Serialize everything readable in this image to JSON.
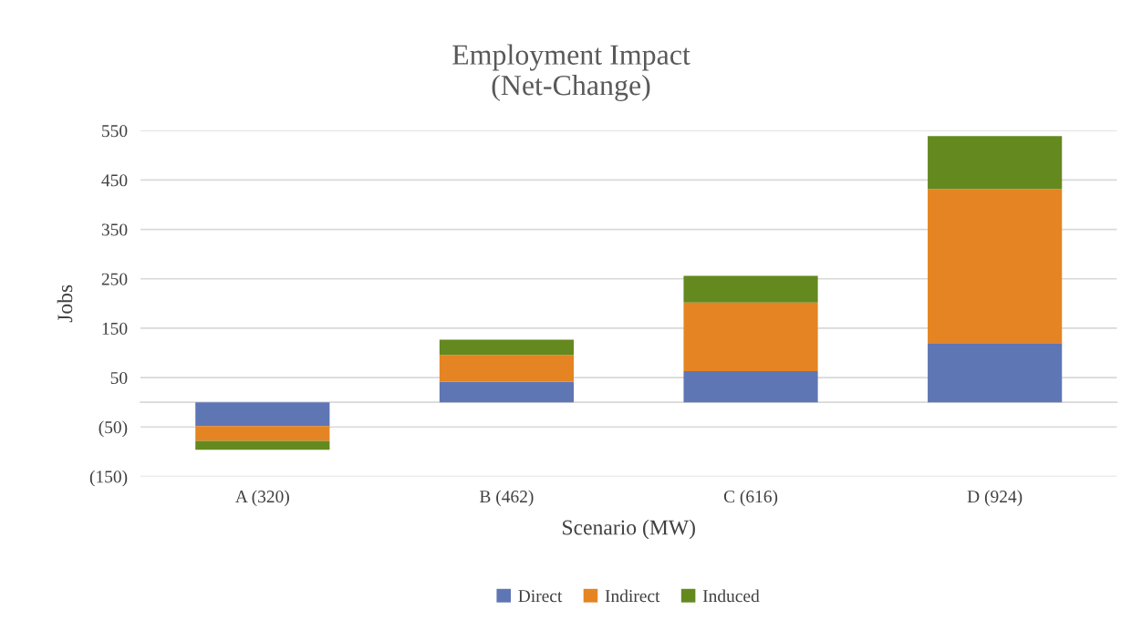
{
  "chart_data": {
    "type": "bar",
    "title": "Employment Impact\n(Net-Change)",
    "xlabel": "Scenario (MW)",
    "ylabel": "Jobs",
    "categories": [
      "A (320)",
      "B (462)",
      "C (616)",
      "D (924)"
    ],
    "stacked": true,
    "series": [
      {
        "name": "Direct",
        "color": "#5f76b4",
        "values": [
          -48,
          42,
          63,
          120
        ]
      },
      {
        "name": "Indirect",
        "color": "#e58422",
        "values": [
          -30,
          54,
          139,
          312
        ]
      },
      {
        "name": "Induced",
        "color": "#64891f",
        "values": [
          -18,
          31,
          54,
          107
        ]
      }
    ],
    "ylim": [
      -150,
      550
    ],
    "yticks": [
      {
        "value": -150,
        "label": "(150)"
      },
      {
        "value": -50,
        "label": "(50)"
      },
      50,
      150,
      250,
      350,
      450,
      550
    ],
    "grid": "y",
    "legend": "bottom"
  }
}
